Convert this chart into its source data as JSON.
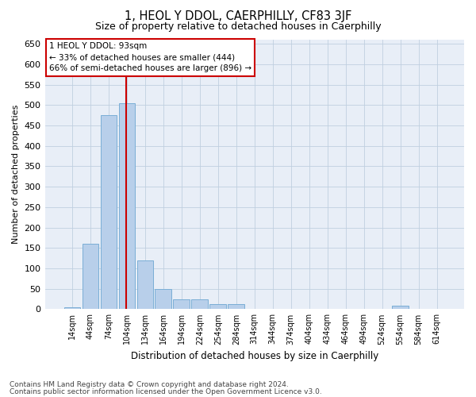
{
  "title": "1, HEOL Y DDOL, CAERPHILLY, CF83 3JF",
  "subtitle": "Size of property relative to detached houses in Caerphilly",
  "xlabel": "Distribution of detached houses by size in Caerphilly",
  "ylabel": "Number of detached properties",
  "bar_values": [
    5,
    160,
    475,
    505,
    120,
    50,
    25,
    25,
    13,
    12,
    0,
    0,
    0,
    0,
    0,
    0,
    0,
    0,
    8,
    0,
    0
  ],
  "bar_labels": [
    "14sqm",
    "44sqm",
    "74sqm",
    "104sqm",
    "134sqm",
    "164sqm",
    "194sqm",
    "224sqm",
    "254sqm",
    "284sqm",
    "314sqm",
    "344sqm",
    "374sqm",
    "404sqm",
    "434sqm",
    "464sqm",
    "494sqm",
    "524sqm",
    "554sqm",
    "584sqm",
    "614sqm"
  ],
  "bar_color": "#b8cfea",
  "bar_edgecolor": "#7aaed6",
  "vline_x": 2.97,
  "vline_color": "#cc0000",
  "ylim": [
    0,
    660
  ],
  "yticks": [
    0,
    50,
    100,
    150,
    200,
    250,
    300,
    350,
    400,
    450,
    500,
    550,
    600,
    650
  ],
  "annotation_text": "1 HEOL Y DDOL: 93sqm\n← 33% of detached houses are smaller (444)\n66% of semi-detached houses are larger (896) →",
  "annotation_box_facecolor": "#ffffff",
  "annotation_box_edgecolor": "#cc0000",
  "footnote1": "Contains HM Land Registry data © Crown copyright and database right 2024.",
  "footnote2": "Contains public sector information licensed under the Open Government Licence v3.0.",
  "axes_bg_color": "#e8eef7",
  "fig_bg_color": "#ffffff",
  "grid_color": "#c0cfe0"
}
